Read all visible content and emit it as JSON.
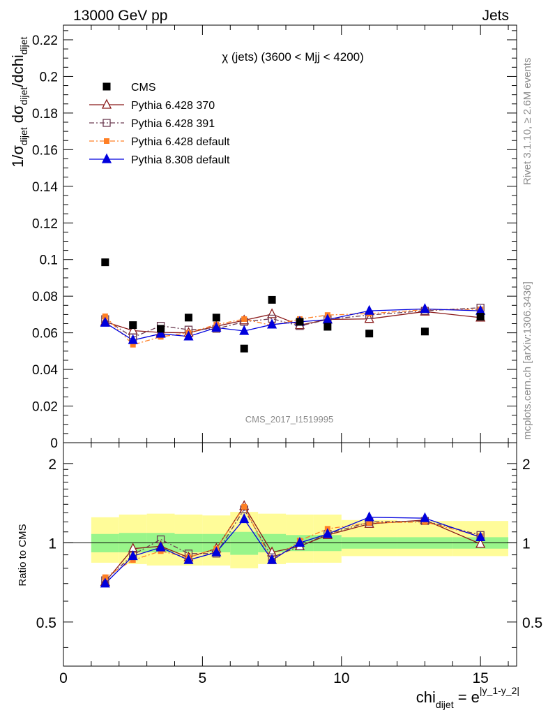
{
  "header": {
    "left": "13000 GeV pp",
    "right": "Jets"
  },
  "side_labels": {
    "rivet": "Rivet 3.1.10, ≥ 2.6M events",
    "mcplots": "mcplots.cern.ch [arXiv:1306.3436]"
  },
  "chart_data": [
    {
      "type": "scatter",
      "panel": "main",
      "title": "χ (jets) (3600 < Mjj < 4200)",
      "watermark": "CMS_2017_I1519995",
      "ylabel": {
        "prefix": "1/σ",
        "sub1": "dijet",
        "mid": " dσ",
        "sub2": "dijet",
        "end": "/dchi",
        "sub3": "dijet"
      },
      "xlim": [
        0,
        16.3
      ],
      "ylim": [
        0,
        0.228
      ],
      "yticks": [
        "0",
        "0.02",
        "0.04",
        "0.06",
        "0.08",
        "0.1",
        "0.12",
        "0.14",
        "0.16",
        "0.18",
        "0.2",
        "0.22"
      ],
      "legend_position": "top-left",
      "x": [
        1.5,
        2.5,
        3.5,
        4.5,
        5.5,
        6.5,
        7.5,
        8.5,
        9.5,
        11,
        13,
        15
      ],
      "bin_edges": [
        1,
        2,
        3,
        4,
        5,
        6,
        7,
        8,
        9,
        10,
        12,
        14,
        16
      ],
      "series": [
        {
          "name": "CMS",
          "style": "data",
          "color": "#000000",
          "values": [
            0.0985,
            0.0642,
            0.0622,
            0.0683,
            0.0683,
            0.0514,
            0.078,
            0.066,
            0.0633,
            0.0596,
            0.0607,
            0.0688
          ]
        },
        {
          "name": "Pythia 6.428 370",
          "style": "solid",
          "marker": "open-triangle",
          "color": "#8b1a1a",
          "values": [
            0.066,
            0.0612,
            0.0602,
            0.06,
            0.0636,
            0.0668,
            0.0702,
            0.0642,
            0.0673,
            0.0676,
            0.0716,
            0.0683
          ]
        },
        {
          "name": "Pythia 6.428 391",
          "style": "dashdot",
          "marker": "open-square",
          "color": "#6b3a50",
          "values": [
            0.0674,
            0.0575,
            0.0638,
            0.0617,
            0.0622,
            0.066,
            0.0677,
            0.0637,
            0.0673,
            0.0697,
            0.072,
            0.0737
          ]
        },
        {
          "name": "Pythia 6.428 default",
          "style": "dashdot",
          "marker": "filled-square",
          "color": "#ff7f24",
          "values": [
            0.069,
            0.0535,
            0.0578,
            0.06,
            0.0645,
            0.0675,
            0.064,
            0.0675,
            0.0697,
            0.0705,
            0.0726,
            0.0728
          ]
        },
        {
          "name": "Pythia 8.308 default",
          "style": "solid",
          "marker": "filled-triangle",
          "color": "#0000dd",
          "values": [
            0.0655,
            0.056,
            0.0595,
            0.058,
            0.0628,
            0.061,
            0.0645,
            0.066,
            0.0672,
            0.072,
            0.073,
            0.072
          ]
        }
      ]
    },
    {
      "type": "scatter",
      "panel": "ratio",
      "ylabel": "Ratio to CMS",
      "yscale": "log",
      "ylim": [
        0.34,
        2.4
      ],
      "yticks": [
        0.5,
        1,
        2
      ],
      "ytick_labels": [
        "0.5",
        "1",
        "2"
      ],
      "xlim": [
        0,
        16.3
      ],
      "xticks": [
        0,
        5,
        10,
        15
      ],
      "xtick_labels": [
        "0",
        "5",
        "10",
        "15"
      ],
      "xlabel": {
        "main": "chi",
        "sub": "dijet",
        "eq": " = e",
        "sup": "|y_1-y_2|"
      },
      "bands": {
        "bin_edges": [
          1,
          2,
          3,
          4,
          5,
          6,
          7,
          8,
          9,
          10,
          12,
          14,
          16
        ],
        "inner_color": "#99f58a",
        "outer_color": "#fffc99",
        "inner_down": [
          0.92,
          0.92,
          0.92,
          0.92,
          0.92,
          0.9,
          0.92,
          0.93,
          0.93,
          0.95,
          0.95,
          0.95
        ],
        "inner_up": [
          1.08,
          1.09,
          1.09,
          1.08,
          1.08,
          1.1,
          1.08,
          1.07,
          1.07,
          1.05,
          1.05,
          1.05
        ],
        "outer_down": [
          0.84,
          0.83,
          0.82,
          0.82,
          0.82,
          0.8,
          0.83,
          0.84,
          0.84,
          0.89,
          0.89,
          0.89
        ],
        "outer_up": [
          1.25,
          1.28,
          1.29,
          1.28,
          1.27,
          1.31,
          1.29,
          1.28,
          1.28,
          1.22,
          1.21,
          1.21
        ]
      },
      "series": [
        {
          "name": "Pythia 6.428 370",
          "values": [
            0.71,
            0.95,
            0.97,
            0.88,
            0.95,
            1.38,
            0.92,
            0.97,
            1.07,
            1.18,
            1.22,
            0.99
          ]
        },
        {
          "name": "Pythia 6.428 391",
          "values": [
            0.72,
            0.9,
            1.03,
            0.91,
            0.91,
            1.34,
            0.88,
            0.97,
            1.08,
            1.2,
            1.21,
            1.07
          ]
        },
        {
          "name": "Pythia 6.428 default",
          "values": [
            0.74,
            0.86,
            0.93,
            0.88,
            0.95,
            1.37,
            0.85,
            1.02,
            1.13,
            1.19,
            1.2,
            1.06
          ]
        },
        {
          "name": "Pythia 8.308 default",
          "values": [
            0.7,
            0.89,
            0.96,
            0.86,
            0.92,
            1.23,
            0.86,
            1.0,
            1.08,
            1.25,
            1.24,
            1.05
          ]
        }
      ]
    }
  ]
}
